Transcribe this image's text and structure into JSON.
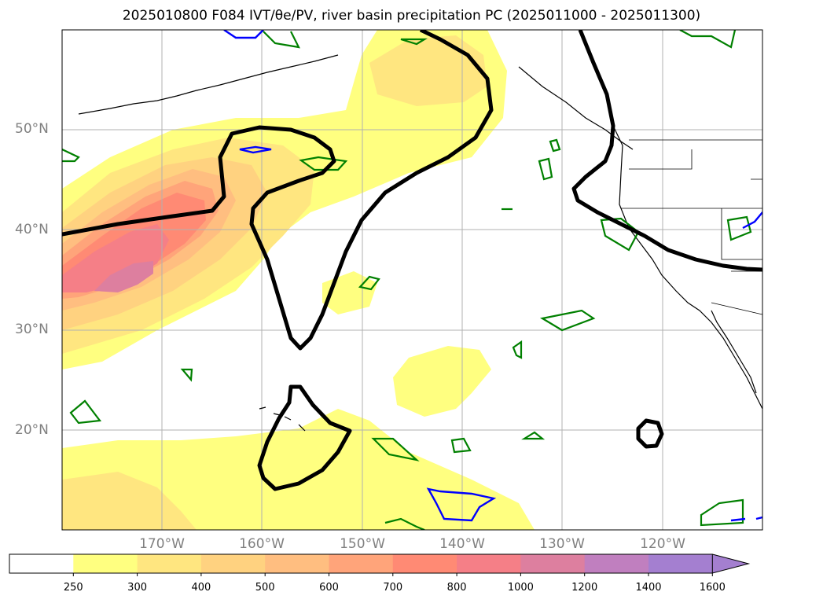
{
  "title": "2025010800 F084 IVT/θe/PV, river basin precipitation PC (2025011000 - 2025011300)",
  "map": {
    "lat_labels": [
      "50°N",
      "40°N",
      "30°N",
      "20°N"
    ],
    "lon_labels": [
      "170°W",
      "160°W",
      "150°W",
      "140°W",
      "130°W",
      "120°W"
    ],
    "extent": {
      "lon": [
        -180,
        -110
      ],
      "lat": [
        10,
        60
      ]
    },
    "layers": [
      "IVT shading",
      "theta-e contour (black)",
      "PV contour (blue)",
      "river basin precipitation PC (green)",
      "coastlines and borders"
    ]
  },
  "colorbar": {
    "ticks": [
      "250",
      "300",
      "400",
      "500",
      "600",
      "700",
      "800",
      "1000",
      "1200",
      "1400",
      "1600"
    ],
    "colors": [
      "#ffffff",
      "#ffff80",
      "#ffe680",
      "#ffd280",
      "#ffbe80",
      "#ffa47a",
      "#ff8a74",
      "#f57f87",
      "#dd7f9f",
      "#c07fbf",
      "#a47fd0"
    ],
    "extend": "max"
  }
}
